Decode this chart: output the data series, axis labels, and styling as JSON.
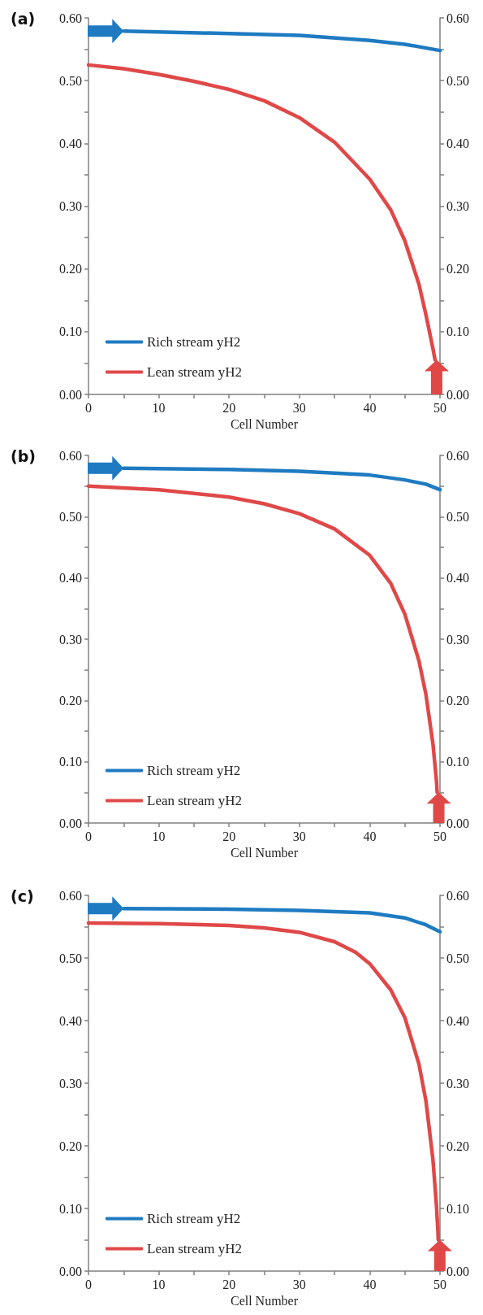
{
  "chart_data": [
    {
      "type": "line",
      "title": "(a)",
      "xlabel": "Cell Number",
      "legend": "bottom left",
      "grid": false,
      "marker": "none",
      "line_style": "solid",
      "xlim": [
        0,
        50
      ],
      "xticks": [
        0,
        {
          "value": 5,
          "label": null
        },
        10,
        {
          "value": 15,
          "label": null
        },
        20,
        {
          "value": 25,
          "label": null
        },
        30,
        {
          "value": 35,
          "label": null
        },
        40,
        {
          "value": 45,
          "label": null
        },
        50
      ],
      "ylim": [
        0,
        0.6
      ],
      "yticks": [
        {
          "value": 0,
          "label": "0.00"
        },
        {
          "value": 0.05,
          "label": null
        },
        {
          "value": 0.1,
          "label": "0.10"
        },
        {
          "value": 0.15,
          "label": null
        },
        {
          "value": 0.2,
          "label": "0.20"
        },
        {
          "value": 0.25,
          "label": null
        },
        {
          "value": 0.3,
          "label": "0.30"
        },
        {
          "value": 0.35,
          "label": null
        },
        {
          "value": 0.4,
          "label": "0.40"
        },
        {
          "value": 0.45,
          "label": null
        },
        {
          "value": 0.5,
          "label": "0.50"
        },
        {
          "value": 0.55,
          "label": null
        },
        {
          "value": 0.6,
          "label": "0.60"
        }
      ],
      "y2lim": [
        0,
        0.6
      ],
      "y2ticks": [
        {
          "value": 0,
          "label": "0.00"
        },
        {
          "value": 0.05,
          "label": null
        },
        {
          "value": 0.1,
          "label": "0.10"
        },
        {
          "value": 0.15,
          "label": null
        },
        {
          "value": 0.2,
          "label": "0.20"
        },
        {
          "value": 0.25,
          "label": null
        },
        {
          "value": 0.3,
          "label": "0.30"
        },
        {
          "value": 0.35,
          "label": null
        },
        {
          "value": 0.4,
          "label": "0.40"
        },
        {
          "value": 0.45,
          "label": null
        },
        {
          "value": 0.5,
          "label": "0.50"
        },
        {
          "value": 0.55,
          "label": null
        },
        {
          "value": 0.6,
          "label": "0.60"
        }
      ],
      "series": [
        {
          "name": "Rich stream yH2",
          "color": "#1f7bc1",
          "x": [
            5,
            20,
            30,
            40,
            45,
            50
          ],
          "values": [
            0.579,
            0.575,
            0.572,
            0.564,
            0.558,
            0.548
          ]
        },
        {
          "name": "Lean stream yH2",
          "color": "#e04848",
          "x": [
            0,
            5,
            10,
            15,
            20,
            25,
            30,
            35,
            40,
            43,
            45,
            47,
            48,
            49,
            49.3
          ],
          "values": [
            0.525,
            0.519,
            0.51,
            0.499,
            0.486,
            0.468,
            0.441,
            0.402,
            0.343,
            0.294,
            0.245,
            0.176,
            0.127,
            0.073,
            0.055
          ]
        }
      ]
    },
    {
      "type": "line",
      "title": "(b)",
      "xlabel": "Cell Number",
      "legend": "bottom left",
      "grid": false,
      "marker": "none",
      "line_style": "solid",
      "xlim": [
        0,
        50
      ],
      "xticks": [
        0,
        {
          "value": 5,
          "label": null
        },
        10,
        {
          "value": 15,
          "label": null
        },
        20,
        {
          "value": 25,
          "label": null
        },
        30,
        {
          "value": 35,
          "label": null
        },
        40,
        {
          "value": 45,
          "label": null
        },
        50
      ],
      "ylim": [
        0,
        0.6
      ],
      "yticks": [
        {
          "value": 0,
          "label": "0.00"
        },
        {
          "value": 0.05,
          "label": null
        },
        {
          "value": 0.1,
          "label": "0.10"
        },
        {
          "value": 0.15,
          "label": null
        },
        {
          "value": 0.2,
          "label": "0.20"
        },
        {
          "value": 0.25,
          "label": null
        },
        {
          "value": 0.3,
          "label": "0.30"
        },
        {
          "value": 0.35,
          "label": null
        },
        {
          "value": 0.4,
          "label": "0.40"
        },
        {
          "value": 0.45,
          "label": null
        },
        {
          "value": 0.5,
          "label": "0.50"
        },
        {
          "value": 0.55,
          "label": null
        },
        {
          "value": 0.6,
          "label": "0.60"
        }
      ],
      "y2lim": [
        0,
        0.6
      ],
      "y2ticks": [
        {
          "value": 0,
          "label": "0.00"
        },
        {
          "value": 0.05,
          "label": null
        },
        {
          "value": 0.1,
          "label": "0.10"
        },
        {
          "value": 0.15,
          "label": null
        },
        {
          "value": 0.2,
          "label": "0.20"
        },
        {
          "value": 0.25,
          "label": null
        },
        {
          "value": 0.3,
          "label": "0.30"
        },
        {
          "value": 0.35,
          "label": null
        },
        {
          "value": 0.4,
          "label": "0.40"
        },
        {
          "value": 0.45,
          "label": null
        },
        {
          "value": 0.5,
          "label": "0.50"
        },
        {
          "value": 0.55,
          "label": null
        },
        {
          "value": 0.6,
          "label": "0.60"
        }
      ],
      "series": [
        {
          "name": "Rich stream yH2",
          "color": "#1f7bc1",
          "x": [
            5,
            20,
            30,
            40,
            45,
            48,
            50
          ],
          "values": [
            0.579,
            0.577,
            0.574,
            0.568,
            0.56,
            0.553,
            0.544
          ]
        },
        {
          "name": "Lean stream yH2",
          "color": "#e04848",
          "x": [
            0,
            10,
            20,
            25,
            30,
            35,
            40,
            43,
            45,
            47,
            48,
            49,
            49.5,
            49.6
          ],
          "values": [
            0.55,
            0.544,
            0.532,
            0.521,
            0.505,
            0.48,
            0.437,
            0.391,
            0.341,
            0.265,
            0.21,
            0.129,
            0.069,
            0.05
          ]
        }
      ]
    },
    {
      "type": "line",
      "title": "(c)",
      "xlabel": "Cell Number",
      "legend": "bottom left",
      "grid": false,
      "marker": "none",
      "line_style": "solid",
      "xlim": [
        0,
        50
      ],
      "xticks": [
        0,
        {
          "value": 5,
          "label": null
        },
        10,
        {
          "value": 15,
          "label": null
        },
        20,
        {
          "value": 25,
          "label": null
        },
        30,
        {
          "value": 35,
          "label": null
        },
        40,
        {
          "value": 45,
          "label": null
        },
        50
      ],
      "ylim": [
        0,
        0.6
      ],
      "yticks": [
        {
          "value": 0,
          "label": "0.00"
        },
        {
          "value": 0.05,
          "label": null
        },
        {
          "value": 0.1,
          "label": "0.10"
        },
        {
          "value": 0.15,
          "label": null
        },
        {
          "value": 0.2,
          "label": "0.20"
        },
        {
          "value": 0.25,
          "label": null
        },
        {
          "value": 0.3,
          "label": "0.30"
        },
        {
          "value": 0.35,
          "label": null
        },
        {
          "value": 0.4,
          "label": "0.40"
        },
        {
          "value": 0.45,
          "label": null
        },
        {
          "value": 0.5,
          "label": "0.50"
        },
        {
          "value": 0.55,
          "label": null
        },
        {
          "value": 0.6,
          "label": "0.60"
        }
      ],
      "y2lim": [
        0,
        0.6
      ],
      "y2ticks": [
        {
          "value": 0,
          "label": "0.00"
        },
        {
          "value": 0.05,
          "label": null
        },
        {
          "value": 0.1,
          "label": "0.10"
        },
        {
          "value": 0.15,
          "label": null
        },
        {
          "value": 0.2,
          "label": "0.20"
        },
        {
          "value": 0.25,
          "label": null
        },
        {
          "value": 0.3,
          "label": "0.30"
        },
        {
          "value": 0.35,
          "label": null
        },
        {
          "value": 0.4,
          "label": "0.40"
        },
        {
          "value": 0.45,
          "label": null
        },
        {
          "value": 0.5,
          "label": "0.50"
        },
        {
          "value": 0.55,
          "label": null
        },
        {
          "value": 0.6,
          "label": "0.60"
        }
      ],
      "series": [
        {
          "name": "Rich stream yH2",
          "color": "#1f7bc1",
          "x": [
            5,
            20,
            30,
            40,
            45,
            48,
            50
          ],
          "values": [
            0.579,
            0.578,
            0.576,
            0.572,
            0.564,
            0.553,
            0.542
          ]
        },
        {
          "name": "Lean stream yH2",
          "color": "#e04848",
          "x": [
            0,
            10,
            20,
            25,
            30,
            35,
            38,
            40,
            43,
            45,
            47,
            48,
            49,
            49.5,
            49.7,
            49.75
          ],
          "values": [
            0.556,
            0.555,
            0.552,
            0.548,
            0.541,
            0.526,
            0.509,
            0.491,
            0.449,
            0.405,
            0.331,
            0.272,
            0.178,
            0.104,
            0.065,
            0.05
          ]
        }
      ]
    }
  ]
}
